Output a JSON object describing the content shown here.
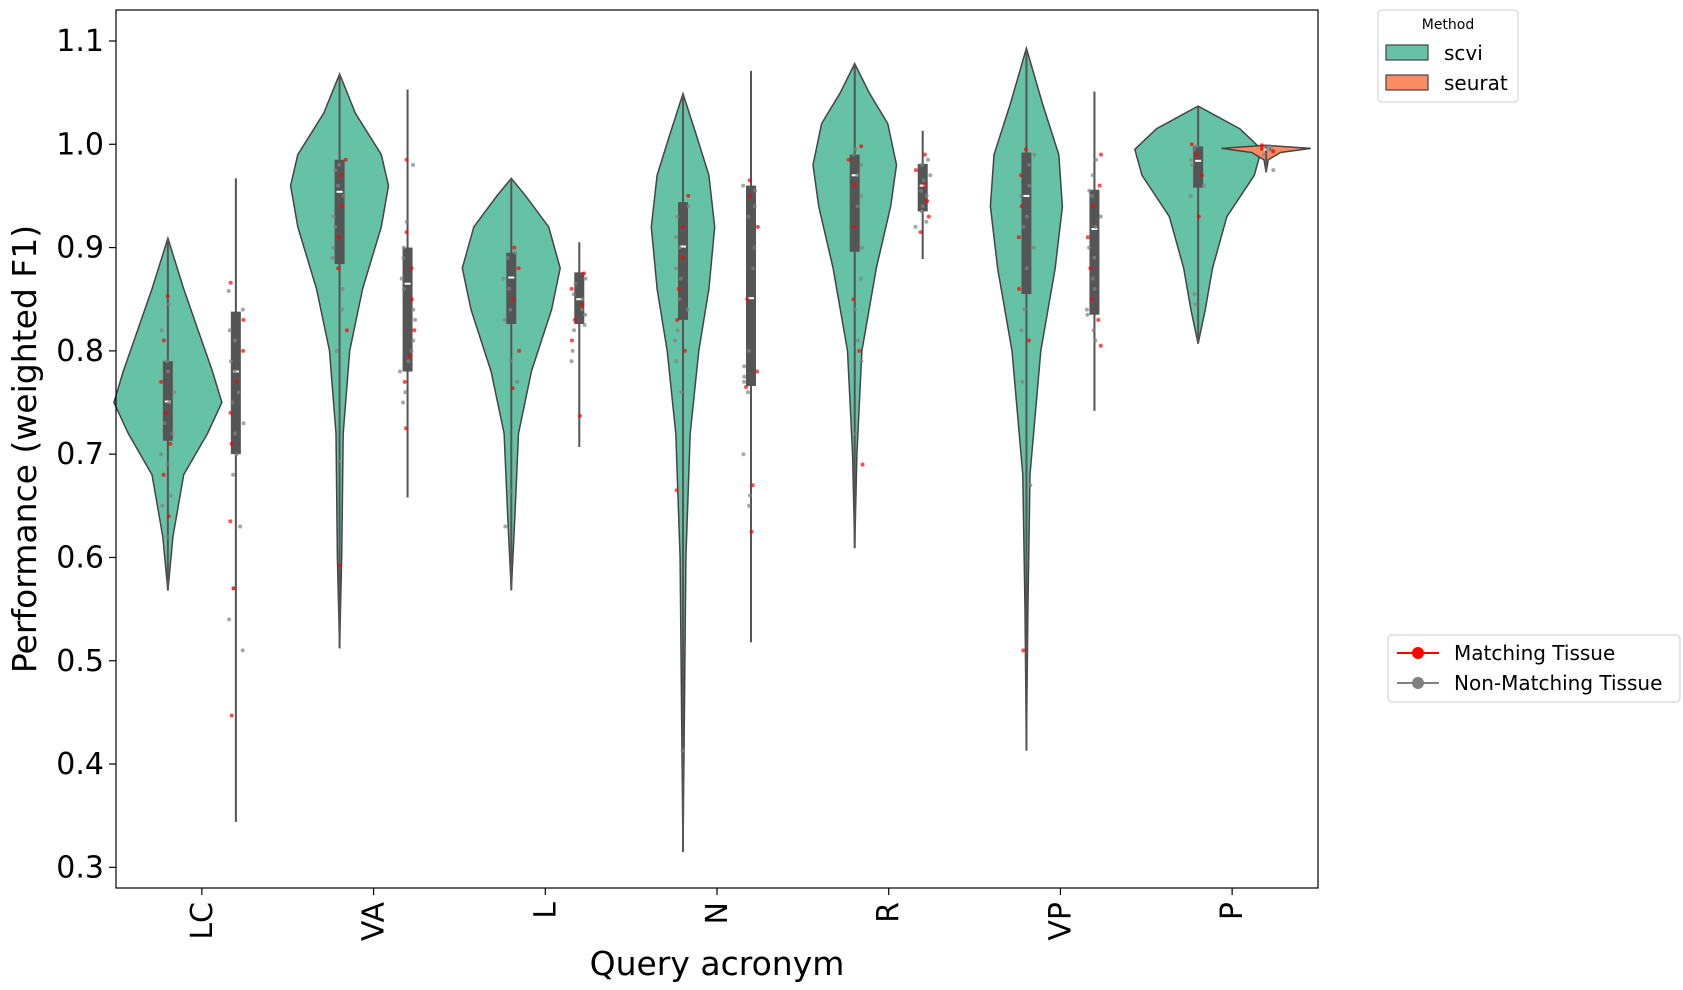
{
  "chart_data": {
    "type": "violin",
    "xlabel": "Query acronym",
    "ylabel": "Performance (weighted F1)",
    "categories": [
      "LC",
      "VA",
      "L",
      "N",
      "R",
      "VP",
      "P"
    ],
    "ylim": [
      0.28,
      1.13
    ],
    "yticks": [
      "0.3",
      "0.4",
      "0.5",
      "0.6",
      "0.7",
      "0.8",
      "0.9",
      "1.0",
      "1.1"
    ],
    "grid": false,
    "legend_method": {
      "title": "Method",
      "placement": "upper-right-outside",
      "entries": [
        {
          "label": "scvi",
          "color": "#66c2a5"
        },
        {
          "label": "seurat",
          "color": "#fc8d62"
        }
      ]
    },
    "legend_tissue": {
      "placement": "right-outside",
      "entries": [
        {
          "label": "Matching Tissue",
          "color": "#ff0000"
        },
        {
          "label": "Non-Matching Tissue",
          "color": "#808080"
        }
      ]
    },
    "series": [
      {
        "name": "scvi",
        "color": "#66c2a5",
        "violins": [
          {
            "category": "LC",
            "min": 0.568,
            "max": 0.909,
            "q1": 0.713,
            "median": 0.751,
            "q3": 0.79,
            "density": [
              [
                0.568,
                0.0
              ],
              [
                0.62,
                0.07
              ],
              [
                0.68,
                0.22
              ],
              [
                0.72,
                0.55
              ],
              [
                0.75,
                0.75
              ],
              [
                0.78,
                0.62
              ],
              [
                0.82,
                0.42
              ],
              [
                0.86,
                0.22
              ],
              [
                0.909,
                0.0
              ]
            ]
          },
          {
            "category": "VA",
            "min": 0.512,
            "max": 1.068,
            "q1": 0.884,
            "median": 0.954,
            "q3": 0.985,
            "density": [
              [
                0.512,
                0.0
              ],
              [
                0.6,
                0.03
              ],
              [
                0.72,
                0.05
              ],
              [
                0.8,
                0.14
              ],
              [
                0.86,
                0.32
              ],
              [
                0.92,
                0.58
              ],
              [
                0.96,
                0.68
              ],
              [
                0.99,
                0.58
              ],
              [
                1.03,
                0.22
              ],
              [
                1.068,
                0.0
              ]
            ]
          },
          {
            "category": "L",
            "min": 0.568,
            "max": 0.967,
            "q1": 0.826,
            "median": 0.871,
            "q3": 0.895,
            "density": [
              [
                0.568,
                0.0
              ],
              [
                0.64,
                0.05
              ],
              [
                0.72,
                0.1
              ],
              [
                0.78,
                0.28
              ],
              [
                0.84,
                0.56
              ],
              [
                0.88,
                0.68
              ],
              [
                0.92,
                0.52
              ],
              [
                0.95,
                0.2
              ],
              [
                0.967,
                0.0
              ]
            ]
          },
          {
            "category": "N",
            "min": 0.315,
            "max": 1.049,
            "q1": 0.83,
            "median": 0.901,
            "q3": 0.944,
            "density": [
              [
                0.315,
                0.0
              ],
              [
                0.45,
                0.02
              ],
              [
                0.6,
                0.04
              ],
              [
                0.72,
                0.1
              ],
              [
                0.8,
                0.22
              ],
              [
                0.86,
                0.36
              ],
              [
                0.92,
                0.44
              ],
              [
                0.97,
                0.36
              ],
              [
                1.01,
                0.18
              ],
              [
                1.049,
                0.0
              ]
            ]
          },
          {
            "category": "R",
            "min": 0.609,
            "max": 1.078,
            "q1": 0.896,
            "median": 0.97,
            "q3": 0.99,
            "density": [
              [
                0.609,
                0.0
              ],
              [
                0.7,
                0.03
              ],
              [
                0.8,
                0.1
              ],
              [
                0.88,
                0.3
              ],
              [
                0.94,
                0.5
              ],
              [
                0.98,
                0.58
              ],
              [
                1.02,
                0.46
              ],
              [
                1.05,
                0.2
              ],
              [
                1.078,
                0.0
              ]
            ]
          },
          {
            "category": "VP",
            "min": 0.413,
            "max": 1.093,
            "q1": 0.855,
            "median": 0.95,
            "q3": 0.992,
            "density": [
              [
                0.413,
                0.0
              ],
              [
                0.55,
                0.02
              ],
              [
                0.68,
                0.05
              ],
              [
                0.8,
                0.2
              ],
              [
                0.88,
                0.4
              ],
              [
                0.94,
                0.5
              ],
              [
                0.99,
                0.45
              ],
              [
                1.04,
                0.22
              ],
              [
                1.093,
                0.0
              ]
            ]
          },
          {
            "category": "P",
            "min": 0.807,
            "max": 1.037,
            "q1": 0.958,
            "median": 0.984,
            "q3": 0.998,
            "density": [
              [
                0.807,
                0.0
              ],
              [
                0.84,
                0.1
              ],
              [
                0.88,
                0.2
              ],
              [
                0.93,
                0.4
              ],
              [
                0.97,
                0.78
              ],
              [
                0.995,
                0.88
              ],
              [
                1.015,
                0.58
              ],
              [
                1.037,
                0.0
              ]
            ]
          }
        ]
      },
      {
        "name": "seurat",
        "color": "#fc8d62",
        "violins": [
          {
            "category": "LC",
            "min": 0.344,
            "max": 0.967,
            "q1": 0.7,
            "median": 0.78,
            "q3": 0.838,
            "density": [
              [
                0.344,
                0.0
              ],
              [
                0.967,
                0.0
              ]
            ]
          },
          {
            "category": "VA",
            "min": 0.658,
            "max": 1.053,
            "q1": 0.78,
            "median": 0.865,
            "q3": 0.9,
            "density": [
              [
                0.658,
                0.0
              ],
              [
                1.053,
                0.0
              ]
            ]
          },
          {
            "category": "L",
            "min": 0.707,
            "max": 0.905,
            "q1": 0.826,
            "median": 0.85,
            "q3": 0.876,
            "density": [
              [
                0.707,
                0.0
              ],
              [
                0.905,
                0.0
              ]
            ]
          },
          {
            "category": "N",
            "min": 0.518,
            "max": 1.071,
            "q1": 0.766,
            "median": 0.851,
            "q3": 0.96,
            "density": [
              [
                0.518,
                0.0
              ],
              [
                1.071,
                0.0
              ]
            ]
          },
          {
            "category": "R",
            "min": 0.889,
            "max": 1.013,
            "q1": 0.935,
            "median": 0.96,
            "q3": 0.981,
            "density": [
              [
                0.889,
                0.0
              ],
              [
                1.013,
                0.0
              ]
            ]
          },
          {
            "category": "VP",
            "min": 0.742,
            "max": 1.051,
            "q1": 0.835,
            "median": 0.918,
            "q3": 0.956,
            "density": [
              [
                0.742,
                0.0
              ],
              [
                1.051,
                0.0
              ]
            ]
          },
          {
            "category": "P",
            "min": 0.973,
            "max": 0.999,
            "q1": 0.994,
            "median": 0.995,
            "q3": 0.996,
            "density": [
              [
                0.973,
                0.0
              ],
              [
                0.985,
                0.03
              ],
              [
                0.992,
                0.2
              ],
              [
                0.996,
                0.62
              ],
              [
                0.999,
                0.0
              ]
            ]
          }
        ]
      }
    ],
    "points": {
      "note_source": "jittered strip points per category and method",
      "LC": {
        "scvi": [
          0.853,
          0.845,
          0.82,
          0.81,
          0.79,
          0.78,
          0.77,
          0.76,
          0.75,
          0.74,
          0.73,
          0.72,
          0.71,
          0.7,
          0.69,
          0.68,
          0.66,
          0.65,
          0.64,
          0.62
        ],
        "seurat": [
          0.866,
          0.858,
          0.84,
          0.83,
          0.82,
          0.81,
          0.8,
          0.79,
          0.78,
          0.77,
          0.76,
          0.75,
          0.74,
          0.73,
          0.72,
          0.71,
          0.7,
          0.68,
          0.635,
          0.63,
          0.57,
          0.57,
          0.54,
          0.51,
          0.447
        ]
      },
      "VA": {
        "scvi": [
          0.985,
          0.98,
          0.975,
          0.97,
          0.96,
          0.95,
          0.94,
          0.93,
          0.92,
          0.91,
          0.9,
          0.89,
          0.88,
          0.86,
          0.84,
          0.82,
          0.8,
          0.693,
          0.592
        ],
        "seurat": [
          0.985,
          0.98,
          0.925,
          0.915,
          0.9,
          0.89,
          0.88,
          0.87,
          0.86,
          0.85,
          0.84,
          0.83,
          0.82,
          0.81,
          0.8,
          0.795,
          0.79,
          0.78,
          0.77,
          0.76,
          0.75,
          0.725
        ]
      },
      "L": {
        "scvi": [
          0.9,
          0.895,
          0.89,
          0.88,
          0.87,
          0.86,
          0.85,
          0.84,
          0.83,
          0.8,
          0.79,
          0.77,
          0.764,
          0.664,
          0.63
        ],
        "seurat": [
          0.875,
          0.87,
          0.865,
          0.86,
          0.855,
          0.85,
          0.845,
          0.84,
          0.835,
          0.83,
          0.825,
          0.82,
          0.81,
          0.8,
          0.79,
          0.737
        ]
      },
      "N": {
        "scvi": [
          0.95,
          0.94,
          0.93,
          0.92,
          0.91,
          0.9,
          0.89,
          0.88,
          0.87,
          0.86,
          0.85,
          0.84,
          0.83,
          0.82,
          0.81,
          0.8,
          0.79,
          0.76,
          0.665,
          0.413
        ],
        "seurat": [
          0.965,
          0.96,
          0.955,
          0.95,
          0.94,
          0.93,
          0.92,
          0.9,
          0.88,
          0.85,
          0.8,
          0.785,
          0.78,
          0.775,
          0.77,
          0.765,
          0.76,
          0.7,
          0.67,
          0.66,
          0.65,
          0.625
        ]
      },
      "R": {
        "scvi": [
          0.998,
          0.995,
          0.99,
          0.985,
          0.98,
          0.97,
          0.96,
          0.95,
          0.94,
          0.92,
          0.9,
          0.87,
          0.85,
          0.84,
          0.81,
          0.8,
          0.79,
          0.72,
          0.69
        ],
        "seurat": [
          0.99,
          0.985,
          0.98,
          0.975,
          0.97,
          0.965,
          0.96,
          0.955,
          0.95,
          0.945,
          0.94,
          0.935,
          0.93,
          0.925,
          0.92,
          0.915
        ]
      },
      "VP": {
        "scvi": [
          0.995,
          0.99,
          0.98,
          0.97,
          0.96,
          0.95,
          0.94,
          0.93,
          0.92,
          0.91,
          0.9,
          0.88,
          0.86,
          0.84,
          0.82,
          0.81,
          0.77,
          0.67,
          0.51
        ],
        "seurat": [
          0.99,
          0.985,
          0.97,
          0.96,
          0.955,
          0.95,
          0.94,
          0.93,
          0.92,
          0.91,
          0.9,
          0.89,
          0.88,
          0.87,
          0.86,
          0.85,
          0.84,
          0.835,
          0.83,
          0.82,
          0.81,
          0.805
        ]
      },
      "P": {
        "scvi": [
          1.0,
          0.998,
          0.995,
          0.99,
          0.985,
          0.98,
          0.97,
          0.96,
          0.95,
          0.93,
          0.855,
          0.845
        ],
        "seurat": [
          0.999,
          0.998,
          0.997,
          0.996,
          0.995,
          0.994,
          0.993,
          0.99,
          0.975
        ]
      }
    }
  }
}
